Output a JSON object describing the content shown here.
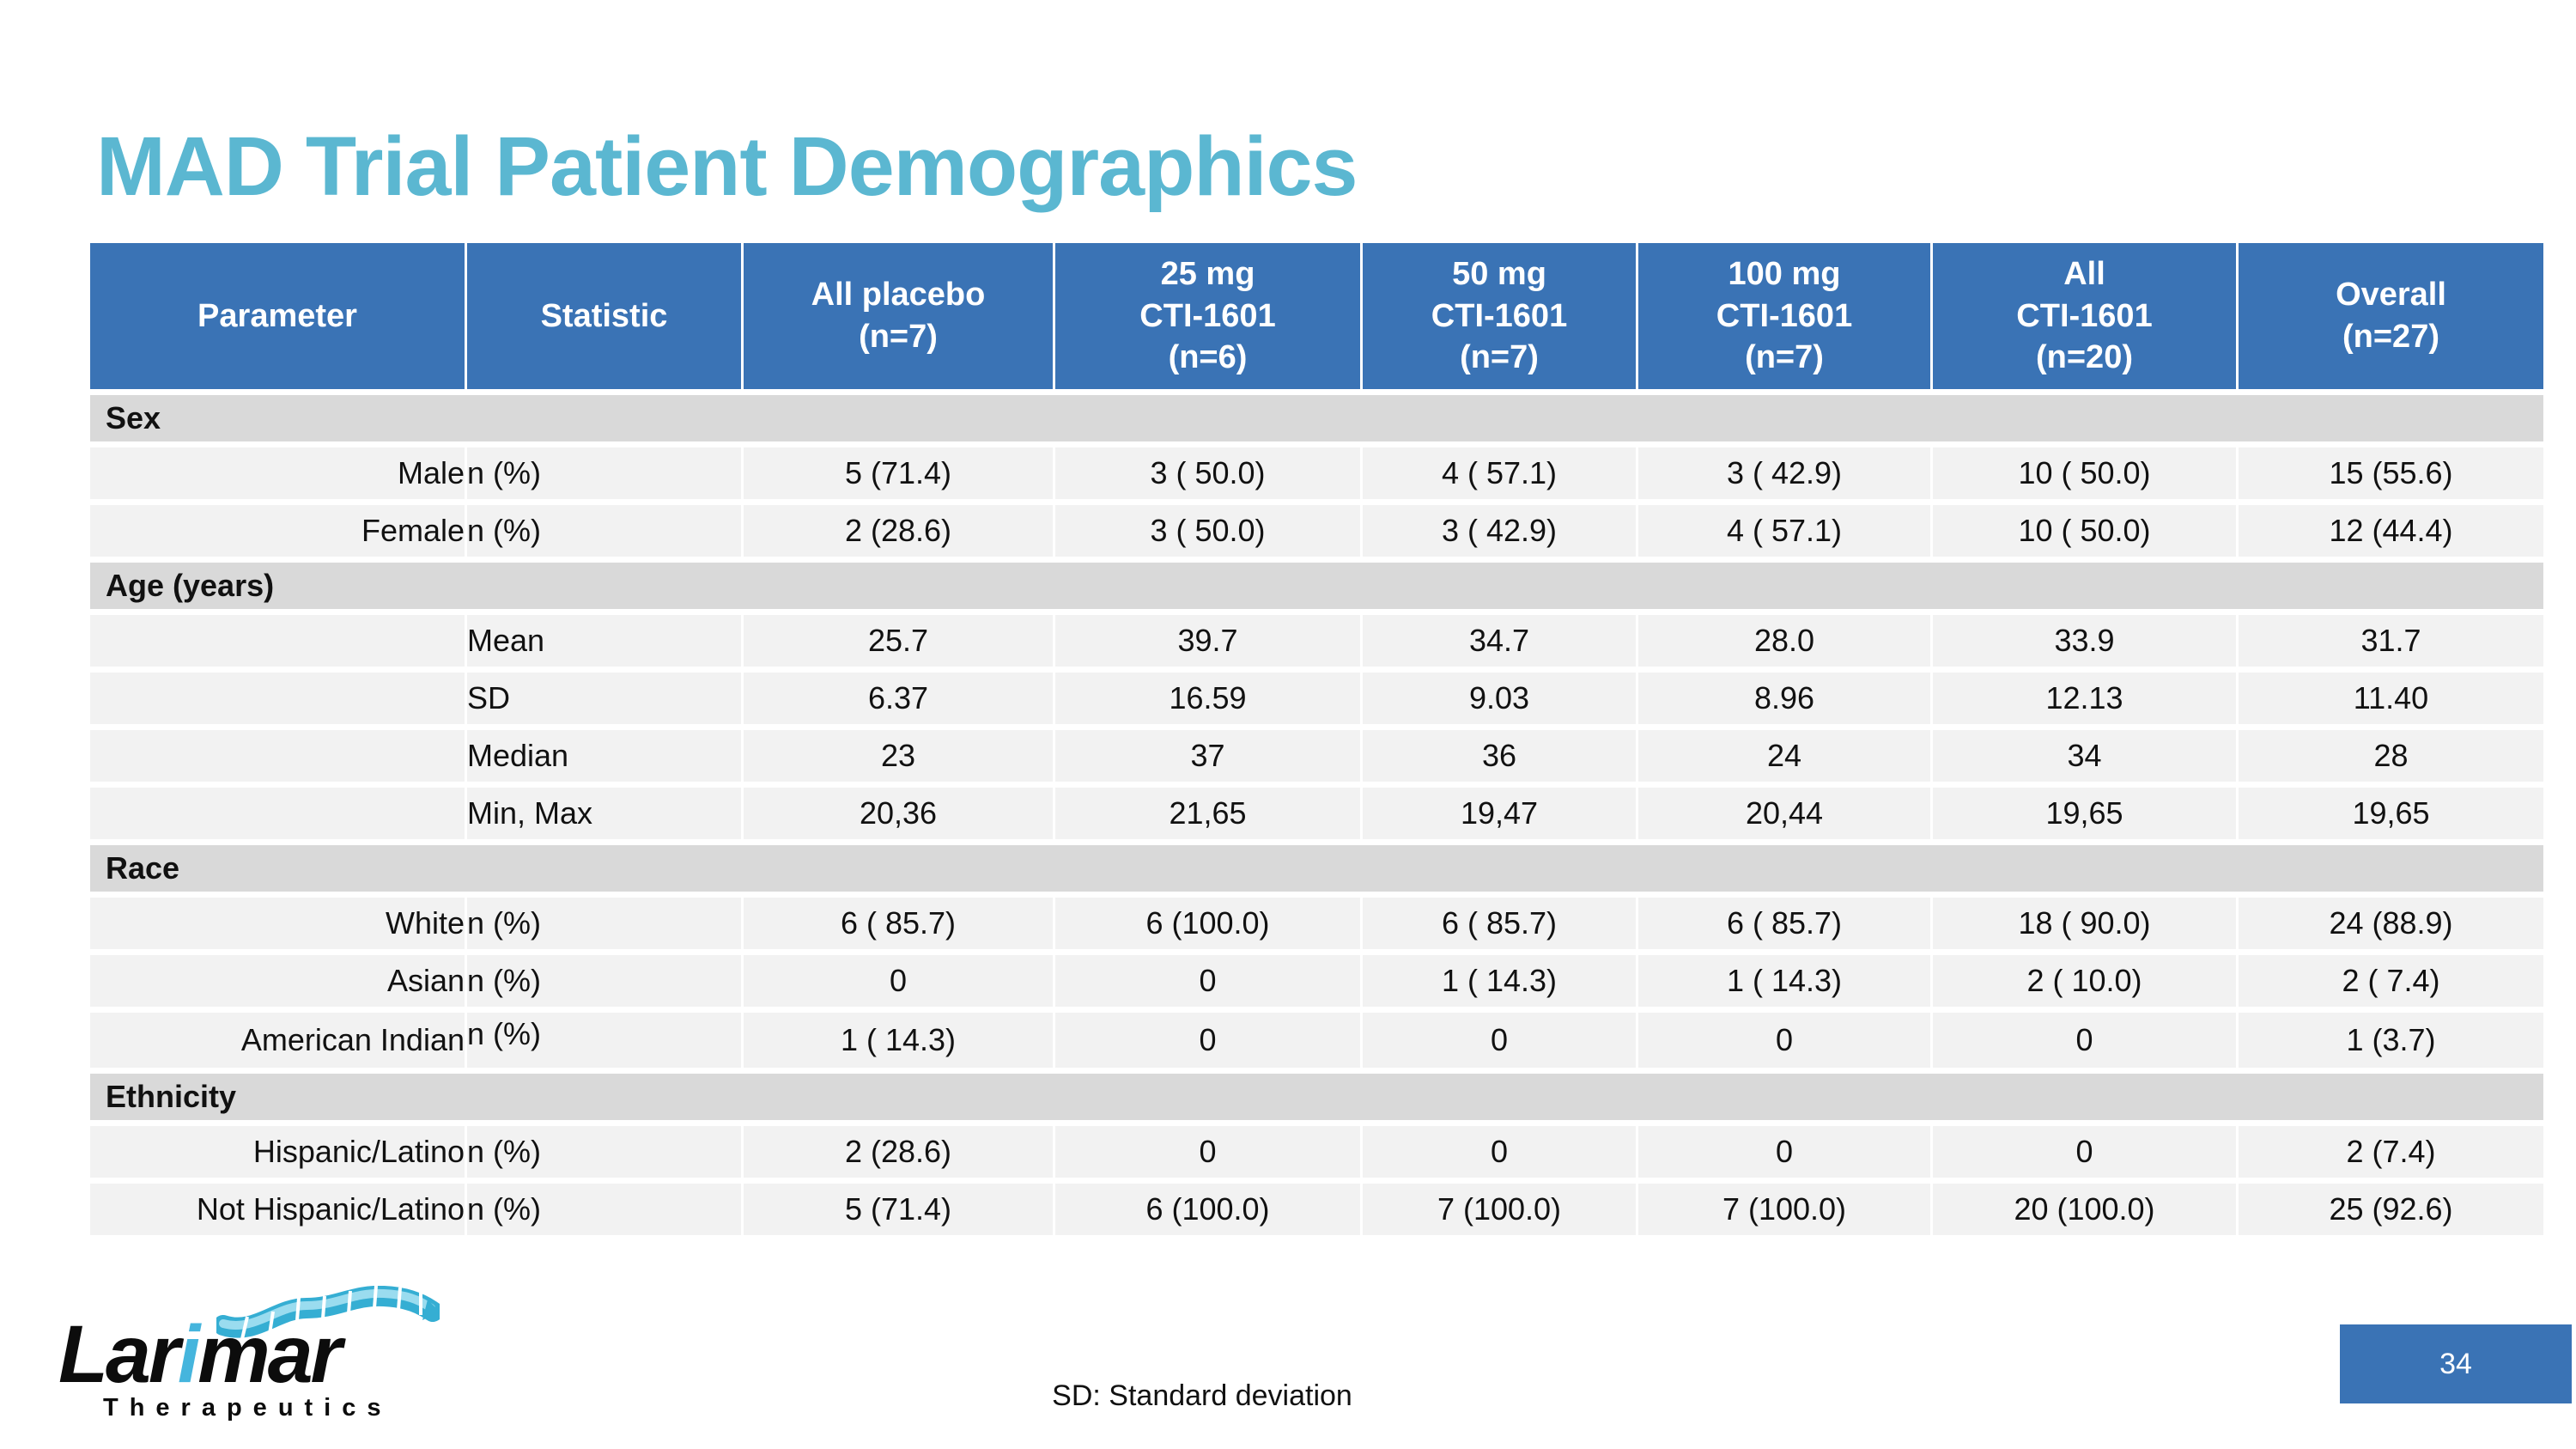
{
  "slide": {
    "title": "MAD Trial Patient Demographics",
    "footnote": "SD: Standard deviation",
    "page_number": "34"
  },
  "logo": {
    "word_prefix": "Lar",
    "word_accent": "i",
    "word_suffix": "mar",
    "subtext": "Therapeutics",
    "helix_icon": "protein-helix-icon"
  },
  "colors": {
    "header_bg": "#3a73b5",
    "section_row_bg": "#d9d9d9",
    "data_row_bg": "#f2f2f2",
    "title_color": "#5bb7d1",
    "header_text": "#ffffff",
    "logo_accent": "#45b5dd"
  },
  "table": {
    "columns": [
      [
        "Parameter"
      ],
      [
        "Statistic"
      ],
      [
        "All placebo",
        "(n=7)"
      ],
      [
        "25 mg",
        "CTI-1601",
        "(n=6)"
      ],
      [
        "50 mg",
        "CTI-1601",
        "(n=7)"
      ],
      [
        "100 mg",
        "CTI-1601",
        "(n=7)"
      ],
      [
        "All",
        "CTI-1601",
        "(n=20)"
      ],
      [
        "Overall",
        "(n=27)"
      ]
    ],
    "sections": [
      {
        "label": "Sex",
        "rows": [
          {
            "parameter": "Male",
            "statistic": "n (%)",
            "values": [
              "5 (71.4)",
              "3 ( 50.0)",
              "4 ( 57.1)",
              "3 ( 42.9)",
              "10 ( 50.0)",
              "15 (55.6)"
            ]
          },
          {
            "parameter": "Female",
            "statistic": "n (%)",
            "values": [
              "2 (28.6)",
              "3 ( 50.0)",
              "3 ( 42.9)",
              "4 ( 57.1)",
              "10 ( 50.0)",
              "12 (44.4)"
            ]
          }
        ]
      },
      {
        "label": "Age (years)",
        "rows": [
          {
            "parameter": "",
            "statistic": "Mean",
            "values": [
              "25.7",
              "39.7",
              "34.7",
              "28.0",
              "33.9",
              "31.7"
            ]
          },
          {
            "parameter": "",
            "statistic": "SD",
            "values": [
              "6.37",
              "16.59",
              "9.03",
              "8.96",
              "12.13",
              "11.40"
            ]
          },
          {
            "parameter": "",
            "statistic": "Median",
            "values": [
              "23",
              "37",
              "36",
              "24",
              "34",
              "28"
            ]
          },
          {
            "parameter": "",
            "statistic": "Min, Max",
            "values": [
              "20,36",
              "21,65",
              "19,47",
              "20,44",
              "19,65",
              "19,65"
            ]
          }
        ]
      },
      {
        "label": "Race",
        "rows": [
          {
            "parameter": "White",
            "statistic": "n (%)",
            "values": [
              "6 ( 85.7)",
              "6 (100.0)",
              "6 ( 85.7)",
              "6 ( 85.7)",
              "18 ( 90.0)",
              "24 (88.9)"
            ]
          },
          {
            "parameter": "Asian",
            "statistic": "n (%)",
            "values": [
              "0",
              "0",
              "1 ( 14.3)",
              "1 ( 14.3)",
              "2 ( 10.0)",
              "2 ( 7.4)"
            ]
          },
          {
            "parameter": "American Indian",
            "statistic": "n (%)",
            "statistic_top": true,
            "values": [
              "1 ( 14.3)",
              "0",
              "0",
              "0",
              "0",
              "1 (3.7)"
            ]
          }
        ]
      },
      {
        "label": "Ethnicity",
        "rows": [
          {
            "parameter": "Hispanic/Latino",
            "statistic": "n (%)",
            "values": [
              "2 (28.6)",
              "0",
              "0",
              "0",
              "0",
              "2 (7.4)"
            ]
          },
          {
            "parameter": "Not Hispanic/Latino",
            "statistic": "n (%)",
            "values": [
              "5 (71.4)",
              "6 (100.0)",
              "7 (100.0)",
              "7 (100.0)",
              "20 (100.0)",
              "25 (92.6)"
            ]
          }
        ]
      }
    ]
  }
}
